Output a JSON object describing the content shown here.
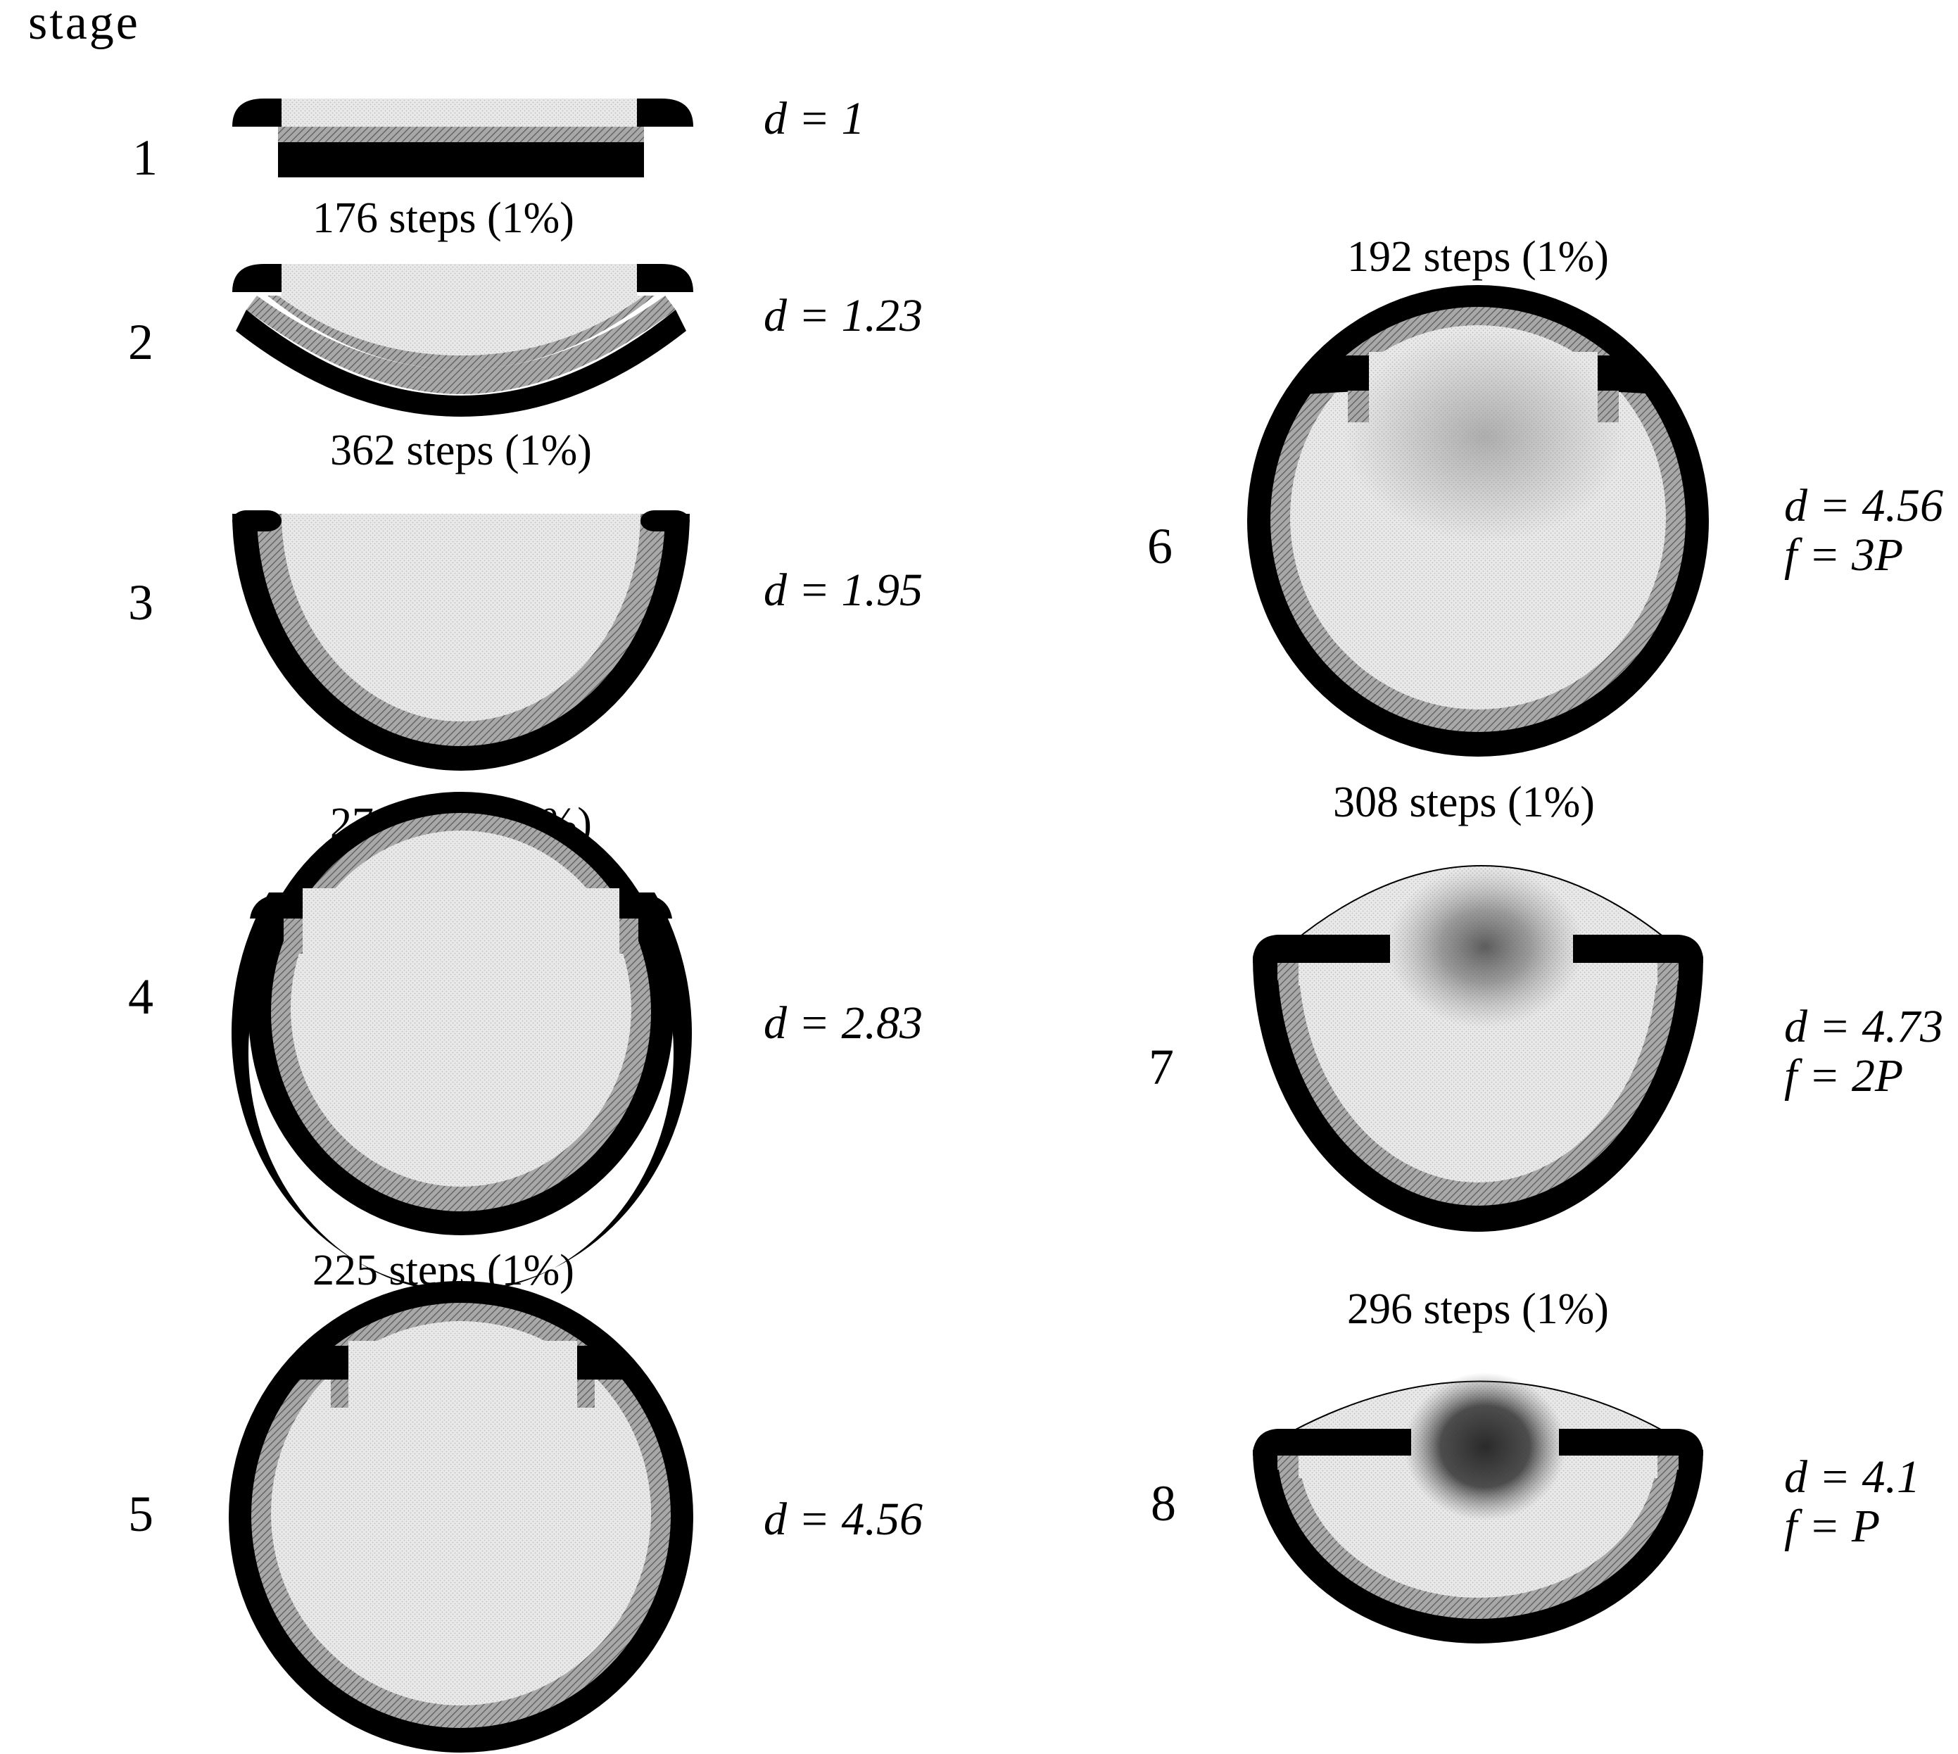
{
  "header": {
    "title": "stage"
  },
  "colors": {
    "outer_membrane": "#000000",
    "inner_layer": "#8f8f8f",
    "lumen": "#e4e4e4",
    "dense_spot": "#3a3a3a"
  },
  "stages": [
    {
      "label": "1",
      "params": [
        "d = 1"
      ]
    },
    {
      "label": "2",
      "params": [
        "d = 1.23"
      ]
    },
    {
      "label": "3",
      "params": [
        "d = 1.95"
      ]
    },
    {
      "label": "4",
      "params": [
        "d = 2.83"
      ]
    },
    {
      "label": "5",
      "params": [
        "d = 4.56"
      ]
    },
    {
      "label": "6",
      "params": [
        "d = 4.56",
        "f = 3P"
      ]
    },
    {
      "label": "7",
      "params": [
        "d = 4.73",
        "f = 2P"
      ]
    },
    {
      "label": "8",
      "params": [
        "d = 4.1",
        "f = P"
      ]
    }
  ],
  "transitions": [
    {
      "text": "176 steps (1%)"
    },
    {
      "text": "362 steps (1%)"
    },
    {
      "text": "270 steps (1%)"
    },
    {
      "text": "225 steps (1%)"
    },
    {
      "text": "192 steps (1%)"
    },
    {
      "text": "308 steps (1%)"
    },
    {
      "text": "296 steps (1%)"
    }
  ]
}
